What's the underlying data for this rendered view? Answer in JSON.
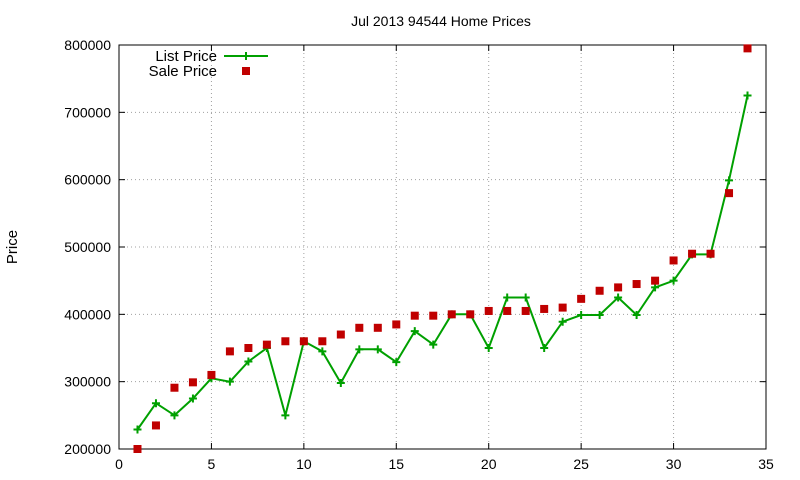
{
  "chart_data": {
    "type": "line",
    "title": "Jul 2013 94544 Home Prices",
    "xlabel": "",
    "ylabel": "Price",
    "xlim": [
      0,
      35
    ],
    "ylim": [
      200000,
      800000
    ],
    "xticks": [
      0,
      5,
      10,
      15,
      20,
      25,
      30,
      35
    ],
    "yticks": [
      200000,
      300000,
      400000,
      500000,
      600000,
      700000,
      800000
    ],
    "grid": true,
    "legend_position": "top-left",
    "x": [
      1,
      2,
      3,
      4,
      5,
      6,
      7,
      8,
      9,
      10,
      11,
      12,
      13,
      14,
      15,
      16,
      17,
      18,
      19,
      20,
      21,
      22,
      23,
      24,
      25,
      26,
      27,
      28,
      29,
      30,
      31,
      32,
      33,
      34
    ],
    "series": [
      {
        "name": "List Price",
        "style": "line+cross",
        "color": "#00a000",
        "values": [
          229000,
          268000,
          250000,
          275000,
          305000,
          300000,
          330000,
          350000,
          250000,
          360000,
          345000,
          298000,
          348000,
          348000,
          329000,
          375000,
          355000,
          400000,
          400000,
          350000,
          425000,
          425000,
          350000,
          389000,
          399000,
          399000,
          425000,
          399000,
          440000,
          450000,
          489000,
          489000,
          599000,
          725000
        ]
      },
      {
        "name": "Sale Price",
        "style": "square",
        "color": "#c00000",
        "values": [
          200000,
          235000,
          291000,
          299000,
          310000,
          345000,
          350000,
          355000,
          360000,
          360000,
          360000,
          370000,
          380000,
          380000,
          385000,
          398000,
          398000,
          400000,
          400000,
          405000,
          405000,
          405000,
          408000,
          410000,
          423000,
          435000,
          440000,
          445000,
          450000,
          480000,
          490000,
          490000,
          580000,
          795000
        ]
      }
    ]
  }
}
